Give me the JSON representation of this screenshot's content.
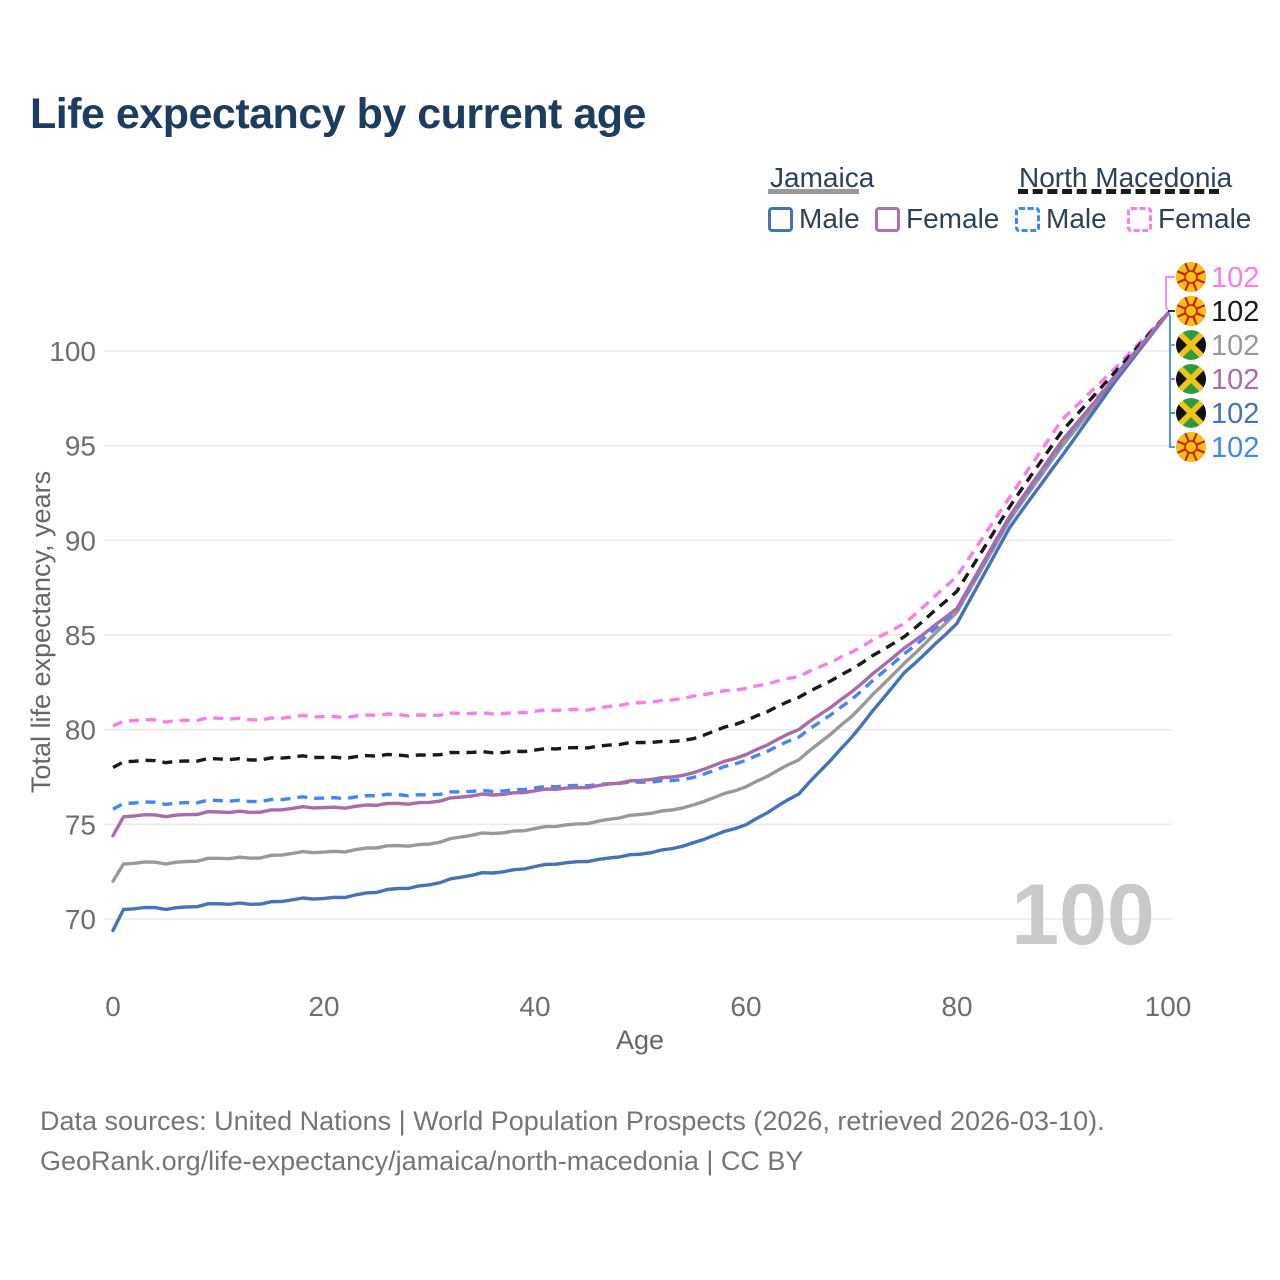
{
  "title": "Life expectancy by current age",
  "legend": {
    "groups": [
      {
        "label": "Jamaica",
        "underline_color": "#999999",
        "underline_style": "solid",
        "items": [
          {
            "label": "Male",
            "color": "#4673b8",
            "style": "solid"
          },
          {
            "label": "Female",
            "color": "#b06fae",
            "style": "solid"
          }
        ]
      },
      {
        "label": "North Macedonia",
        "underline_color": "#1a1a1a",
        "underline_style": "dashed",
        "items": [
          {
            "label": "Male",
            "color": "#4187f5",
            "style": "dashed"
          },
          {
            "label": "Female",
            "color": "#fb7de9",
            "style": "dashed"
          }
        ]
      }
    ]
  },
  "chart_data": {
    "type": "line",
    "title": "Life expectancy by current age",
    "xlabel": "Age",
    "ylabel": "Total life expectancy, years",
    "xticks": [
      0,
      20,
      40,
      60,
      80,
      100
    ],
    "yticks": [
      70,
      75,
      80,
      85,
      90,
      95,
      100
    ],
    "xlim": [
      0,
      100
    ],
    "ylim": [
      69,
      103
    ],
    "grid": true,
    "legend_position": "top-right",
    "watermark": "100",
    "x": [
      0,
      1,
      5,
      10,
      15,
      20,
      25,
      30,
      35,
      40,
      45,
      50,
      55,
      60,
      65,
      70,
      75,
      80,
      85,
      90,
      95,
      100
    ],
    "series": [
      {
        "name": "North Macedonia Female",
        "country": "North Macedonia",
        "sex": "Female",
        "color": "#fb7de9",
        "dash": true,
        "values": [
          80.2,
          80.45,
          80.5,
          80.55,
          80.6,
          80.7,
          80.75,
          80.8,
          80.85,
          80.95,
          81.1,
          81.4,
          81.75,
          82.2,
          82.8,
          84.1,
          85.6,
          88.1,
          92.3,
          96.4,
          99.1,
          102
        ]
      },
      {
        "name": "North Macedonia Both sexes",
        "country": "North Macedonia",
        "sex": "Both",
        "color": "#1a1a1a",
        "dash": true,
        "values": [
          78.0,
          78.3,
          78.35,
          78.4,
          78.5,
          78.55,
          78.6,
          78.7,
          78.8,
          78.9,
          79.1,
          79.3,
          79.5,
          80.5,
          81.7,
          83.2,
          84.9,
          87.3,
          91.8,
          95.8,
          98.9,
          102
        ]
      },
      {
        "name": "Jamaica Both sexes",
        "country": "Jamaica",
        "sex": "Both",
        "color": "#999999",
        "dash": false,
        "values": [
          72.0,
          72.9,
          73.0,
          73.15,
          73.35,
          73.55,
          73.75,
          74.0,
          74.5,
          74.75,
          75.1,
          75.5,
          76.0,
          77.0,
          78.4,
          80.7,
          83.5,
          86.2,
          91.1,
          95.0,
          98.5,
          102
        ]
      },
      {
        "name": "Jamaica Female",
        "country": "Jamaica",
        "sex": "Female",
        "color": "#aa6bab",
        "dash": false,
        "values": [
          74.4,
          75.4,
          75.5,
          75.6,
          75.75,
          75.9,
          76.0,
          76.2,
          76.55,
          76.75,
          77.0,
          77.3,
          77.7,
          78.7,
          80.0,
          82.0,
          84.3,
          86.4,
          91.3,
          95.3,
          98.6,
          102
        ]
      },
      {
        "name": "Jamaica Male",
        "country": "Jamaica",
        "sex": "Male",
        "color": "#4673b8",
        "dash": false,
        "values": [
          69.4,
          70.5,
          70.6,
          70.75,
          70.9,
          71.1,
          71.4,
          71.85,
          72.4,
          72.75,
          73.1,
          73.4,
          74.0,
          75.0,
          76.6,
          79.6,
          83.0,
          85.6,
          90.7,
          94.5,
          98.4,
          102
        ]
      },
      {
        "name": "North Macedonia Male",
        "country": "North Macedonia",
        "sex": "Male",
        "color": "#4187f5",
        "dash": true,
        "values": [
          75.8,
          76.1,
          76.15,
          76.2,
          76.3,
          76.4,
          76.5,
          76.6,
          76.75,
          76.9,
          77.1,
          77.2,
          77.45,
          78.4,
          79.6,
          81.6,
          84.0,
          86.3,
          91.2,
          95.2,
          98.7,
          102
        ]
      }
    ],
    "end_labels": [
      {
        "series": 0,
        "flag": "north-macedonia",
        "value": "102"
      },
      {
        "series": 1,
        "flag": "north-macedonia",
        "value": "102"
      },
      {
        "series": 2,
        "flag": "jamaica",
        "value": "102"
      },
      {
        "series": 3,
        "flag": "jamaica",
        "value": "102"
      },
      {
        "series": 4,
        "flag": "jamaica",
        "value": "102"
      },
      {
        "series": 5,
        "flag": "north-macedonia",
        "value": "102"
      }
    ]
  },
  "footer": {
    "line1": "Data sources: United Nations | World Population Prospects (2026, retrieved 2026-03-10).",
    "line2": "GeoRank.org/life-expectancy/jamaica/north-macedonia | CC BY"
  }
}
